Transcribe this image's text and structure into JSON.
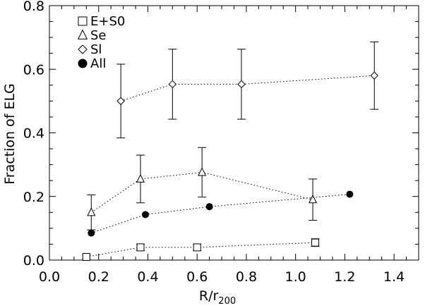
{
  "chart_data": {
    "type": "scatter",
    "title": "",
    "xlabel": "R/r",
    "xlabel_sub": "200",
    "ylabel": "Fraction of ELG",
    "xlim": [
      0.0,
      1.5
    ],
    "ylim": [
      0.0,
      0.8
    ],
    "xticks": [
      0.0,
      0.2,
      0.4,
      0.6,
      0.8,
      1.0,
      1.2,
      1.4
    ],
    "xtick_labels": [
      "0.0",
      "0.2",
      "0.4",
      "0.6",
      "0.8",
      "1.0",
      "1.2",
      "1.4"
    ],
    "yticks": [
      0.0,
      0.2,
      0.4,
      0.6,
      0.8
    ],
    "ytick_labels": [
      "0.0",
      "0.2",
      "0.4",
      "0.6",
      "0.8"
    ],
    "grid": false,
    "legend_position": "top-left",
    "series": [
      {
        "name": "E+S0",
        "marker": "square",
        "x": [
          0.15,
          0.37,
          0.6,
          1.08
        ],
        "y": [
          0.01,
          0.04,
          0.04,
          0.055
        ],
        "err": [
          0.006,
          0.01,
          0.01,
          0.012
        ]
      },
      {
        "name": "Se",
        "marker": "triangle",
        "x": [
          0.17,
          0.37,
          0.62,
          1.07
        ],
        "y": [
          0.15,
          0.255,
          0.276,
          0.19
        ],
        "err": [
          0.055,
          0.075,
          0.078,
          0.065
        ]
      },
      {
        "name": "Sl",
        "marker": "diamond",
        "x": [
          0.29,
          0.5,
          0.78,
          1.32
        ],
        "y": [
          0.5,
          0.553,
          0.553,
          0.58
        ],
        "err": [
          0.116,
          0.11,
          0.11,
          0.106
        ]
      },
      {
        "name": "All",
        "marker": "circle",
        "x": [
          0.17,
          0.39,
          0.65,
          1.22
        ],
        "y": [
          0.085,
          0.143,
          0.168,
          0.207
        ],
        "err": []
      }
    ]
  }
}
